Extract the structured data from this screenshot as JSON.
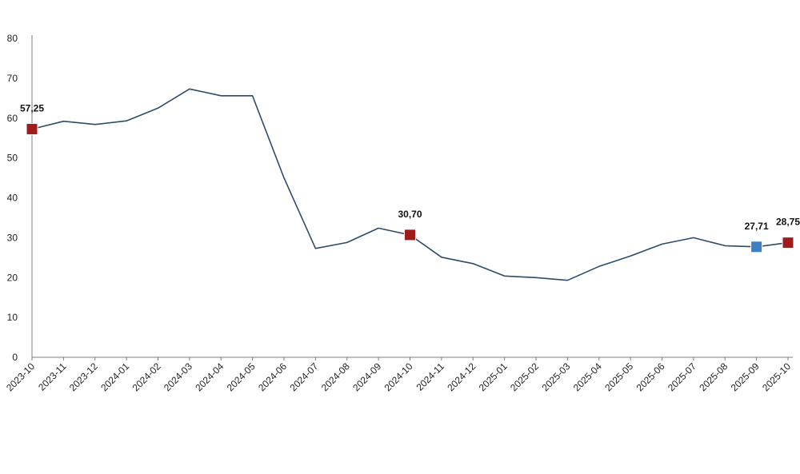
{
  "chart_data": {
    "type": "line",
    "categories": [
      "2023-10",
      "2023-11",
      "2023-12",
      "2024-01",
      "2024-02",
      "2024-03",
      "2024-04",
      "2024-05",
      "2024-06",
      "2024-07",
      "2024-08",
      "2024-09",
      "2024-10",
      "2024-11",
      "2024-12",
      "2025-01",
      "2025-02",
      "2025-03",
      "2025-04",
      "2025-05",
      "2025-06",
      "2025-07",
      "2025-08",
      "2025-09",
      "2025-10"
    ],
    "series": [
      {
        "values": [
          57.25,
          59.2,
          58.4,
          59.3,
          62.5,
          67.3,
          65.6,
          65.6,
          45.0,
          27.3,
          28.8,
          32.4,
          30.7,
          25.1,
          23.5,
          20.4,
          20.0,
          19.3,
          22.8,
          25.4,
          28.4,
          30.0,
          28.0,
          27.71,
          28.75
        ],
        "color": "#2e4b6b"
      }
    ],
    "ylim": [
      0,
      80
    ],
    "yticks": [
      0,
      10,
      20,
      30,
      40,
      50,
      60,
      70,
      80
    ],
    "grid": false,
    "highlights": [
      {
        "index": 0,
        "label": "57,25",
        "color": "#a01c1c"
      },
      {
        "index": 12,
        "label": "30,70",
        "color": "#a01c1c"
      },
      {
        "index": 23,
        "label": "27,71",
        "color": "#3b7fc4"
      },
      {
        "index": 24,
        "label": "28,75",
        "color": "#a01c1c"
      }
    ]
  }
}
